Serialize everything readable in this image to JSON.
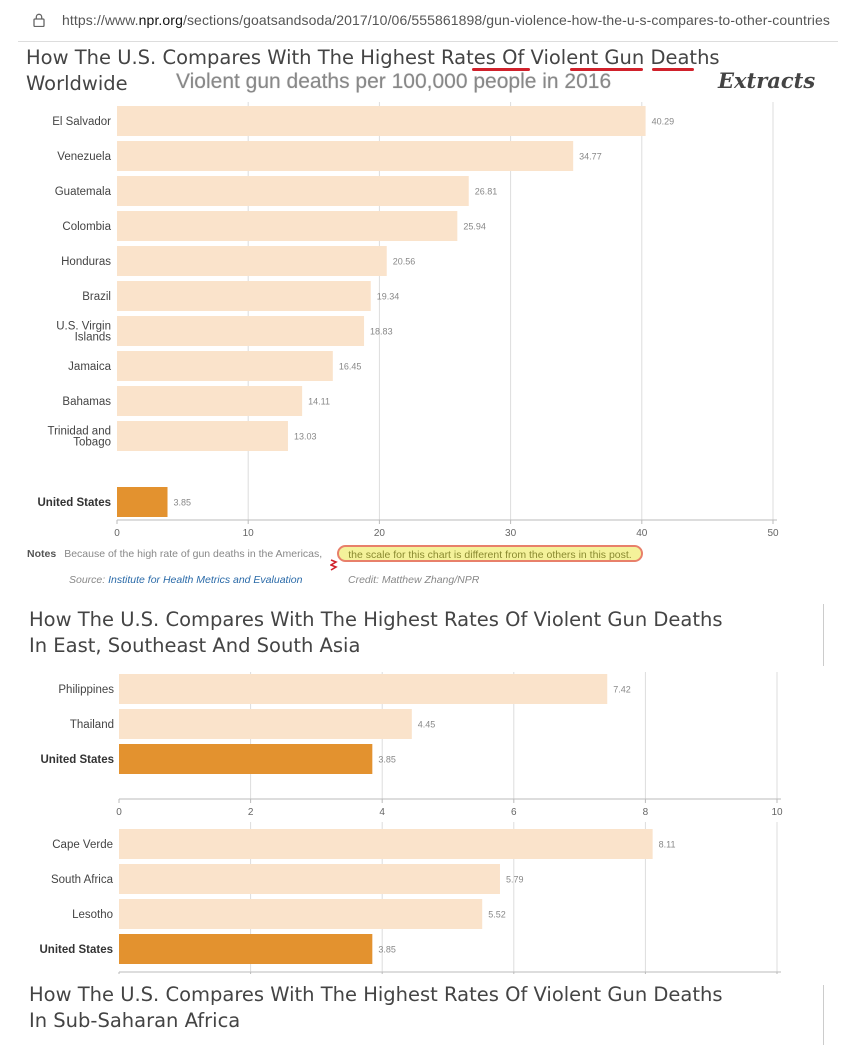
{
  "browser": {
    "url_prefix": "https://www.",
    "url_domain": "npr.org",
    "url_path": "/sections/goatsandsoda/2017/10/06/555861898/gun-violence-how-the-u-s-compares-to-other-countries"
  },
  "section1": {
    "title_line1_pre": "How The U.S. Compares With The Highest ",
    "title_w1": "Rates",
    "title_w2": "Of",
    "title_w3": "Violent",
    "title_w4": "Gun",
    "title_w5": "Deaths",
    "title_line2": "Worldwide",
    "subtitle": "Violent gun deaths per 100,000 people in 2016",
    "overlay_label": "Extracts",
    "notes_label": "Notes",
    "notes_text": "Because of the high rate of gun deaths in the Americas,",
    "notes_highlight": "the scale for this chart is different from the others in this post.",
    "source_label": "Source:",
    "source_link": "Institute for Health Metrics and Evaluation",
    "credit": "Credit: Matthew Zhang/NPR"
  },
  "section2": {
    "title_line1": "How The U.S. Compares With The Highest Rates Of Violent Gun Deaths",
    "title_line2": "In East, Southeast And South Asia"
  },
  "section3": {
    "title_line1": "How The U.S. Compares With The Highest Rates Of Violent Gun Deaths",
    "title_line2": "In Sub-Saharan Africa"
  },
  "colors": {
    "bar": "#fae3cb",
    "highlight_bar": "#e3922f",
    "grid": "#dddddd",
    "underline": "#d0212b"
  },
  "chart_data": [
    {
      "type": "bar",
      "orientation": "horizontal",
      "categories": [
        "El Salvador",
        "Venezuela",
        "Guatemala",
        "Colombia",
        "Honduras",
        "Brazil",
        "U.S. Virgin Islands",
        "Jamaica",
        "Bahamas",
        "Trinidad and Tobago",
        "United States"
      ],
      "category_lines": [
        [
          "El Salvador"
        ],
        [
          "Venezuela"
        ],
        [
          "Guatemala"
        ],
        [
          "Colombia"
        ],
        [
          "Honduras"
        ],
        [
          "Brazil"
        ],
        [
          "U.S. Virgin",
          "Islands"
        ],
        [
          "Jamaica"
        ],
        [
          "Bahamas"
        ],
        [
          "Trinidad and",
          "Tobago"
        ],
        [
          "United States"
        ]
      ],
      "values": [
        40.29,
        34.77,
        26.81,
        25.94,
        20.56,
        19.34,
        18.83,
        16.45,
        14.11,
        13.03,
        3.85
      ],
      "labels": [
        "40.29",
        "34.77",
        "26.81",
        "25.94",
        "20.56",
        "19.34",
        "18.83",
        "16.45",
        "14.11",
        "13.03",
        "3.85"
      ],
      "highlight": "United States",
      "xlim": [
        0,
        50
      ],
      "ticks": [
        "0",
        "10",
        "20",
        "30",
        "40",
        "50"
      ],
      "tick_values": [
        0,
        10,
        20,
        30,
        40,
        50
      ],
      "grid": true
    },
    {
      "type": "bar",
      "orientation": "horizontal",
      "categories": [
        "Philippines",
        "Thailand",
        "United States"
      ],
      "category_lines": [
        [
          "Philippines"
        ],
        [
          "Thailand"
        ],
        [
          "United States"
        ]
      ],
      "values": [
        7.42,
        4.45,
        3.85
      ],
      "labels": [
        "7.42",
        "4.45",
        "3.85"
      ],
      "highlight": "United States",
      "xlim": [
        0,
        10
      ],
      "ticks": [
        "0",
        "2",
        "4",
        "6",
        "8",
        "10"
      ],
      "tick_values": [
        0,
        2,
        4,
        6,
        8,
        10
      ],
      "grid": true
    },
    {
      "type": "bar",
      "orientation": "horizontal",
      "categories": [
        "Cape Verde",
        "South Africa",
        "Lesotho",
        "United States"
      ],
      "category_lines": [
        [
          "Cape Verde"
        ],
        [
          "South Africa"
        ],
        [
          "Lesotho"
        ],
        [
          "United States"
        ]
      ],
      "values": [
        8.11,
        5.79,
        5.52,
        3.85
      ],
      "labels": [
        "8.11",
        "5.79",
        "5.52",
        "3.85"
      ],
      "highlight": "United States",
      "xlim": [
        0,
        10
      ],
      "grid": true
    }
  ]
}
